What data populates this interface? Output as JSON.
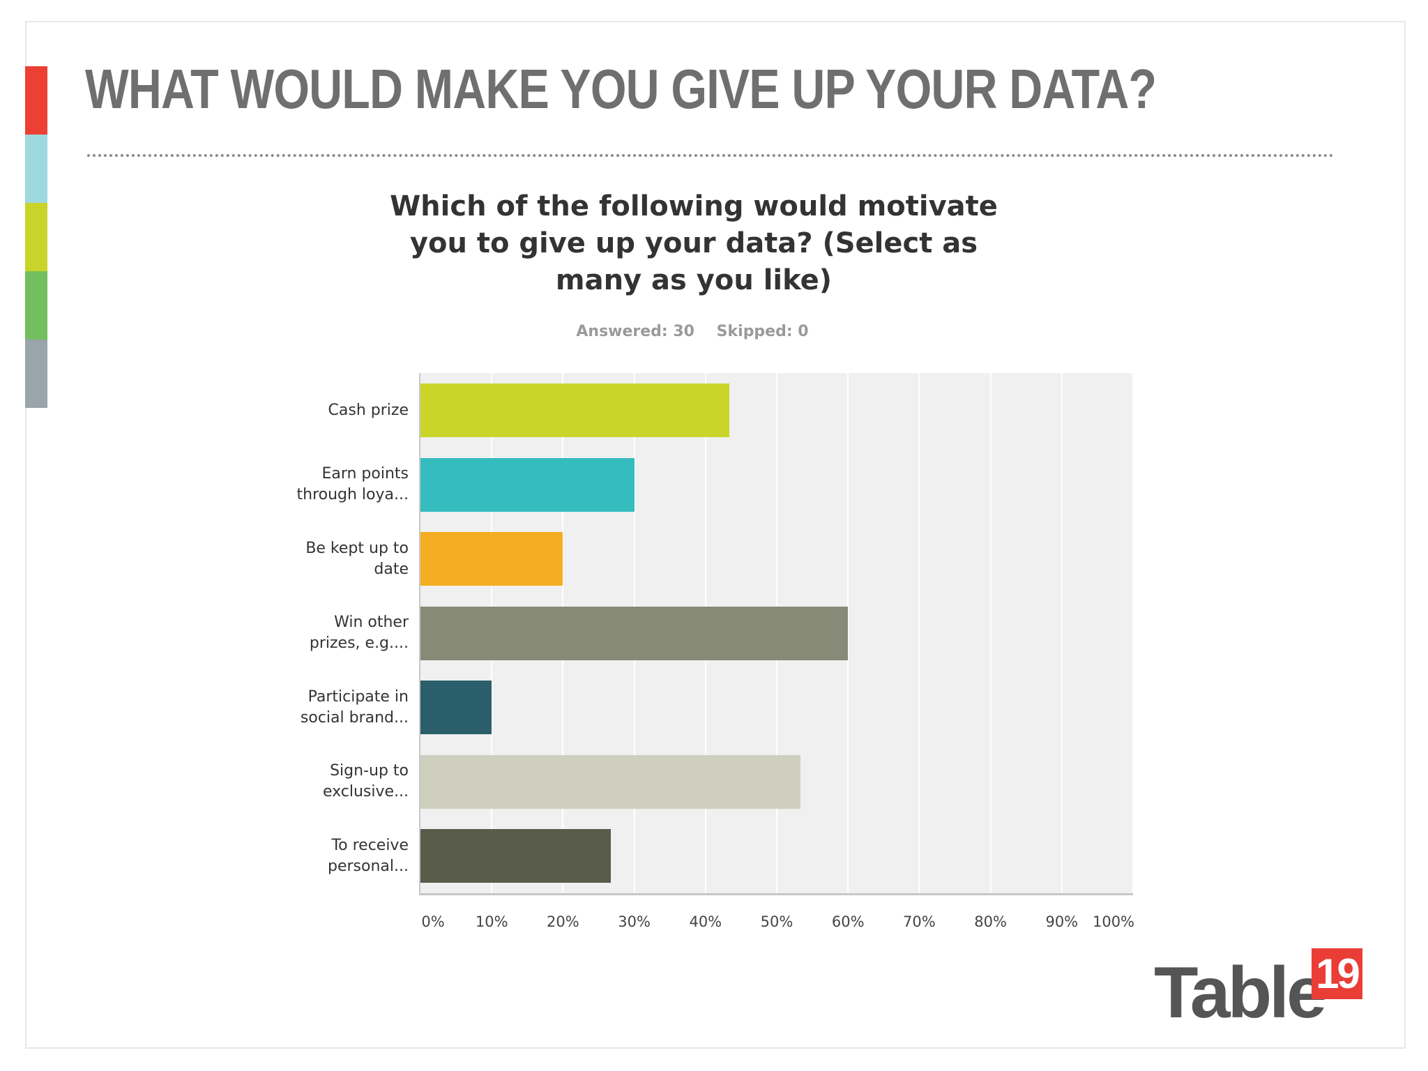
{
  "slide": {
    "headline": "WHAT WOULD MAKE YOU GIVE UP YOUR DATA?",
    "strip_colors": [
      "#ec4034",
      "#9fd9e0",
      "#c8d42a",
      "#73bf60",
      "#9aa4ab"
    ]
  },
  "survey": {
    "question": "Which of the following would motivate you to give up your data? (Select as many as you like)",
    "answered": "Answered: 30",
    "skipped": "Skipped: 0"
  },
  "chart_data": {
    "type": "bar",
    "orientation": "horizontal",
    "title": "Which of the following would motivate you to give up your data? (Select as many as you like)",
    "categories": [
      [
        "Cash prize"
      ],
      [
        "Earn points",
        "through loya..."
      ],
      [
        "Be kept up to",
        "date"
      ],
      [
        "Win other",
        "prizes, e.g...."
      ],
      [
        "Participate in",
        "social brand..."
      ],
      [
        "Sign-up to",
        "exclusive..."
      ],
      [
        "To receive",
        "personal..."
      ]
    ],
    "values": [
      43.33,
      30.0,
      20.0,
      60.0,
      10.0,
      53.33,
      26.67
    ],
    "colors": [
      "#cad52a",
      "#35bcbf",
      "#f5ae21",
      "#888a78",
      "#2b5e6b",
      "#cfcfbf",
      "#595b4b"
    ],
    "xlim": [
      0,
      100
    ],
    "tick_labels": [
      "0%",
      "10%",
      "20%",
      "30%",
      "40%",
      "50%",
      "60%",
      "70%",
      "80%",
      "90%",
      "100%"
    ],
    "grid": true
  },
  "brand": {
    "logo_word": "Table",
    "logo_number": "19",
    "logo_number_bg": "#ea3d35"
  }
}
